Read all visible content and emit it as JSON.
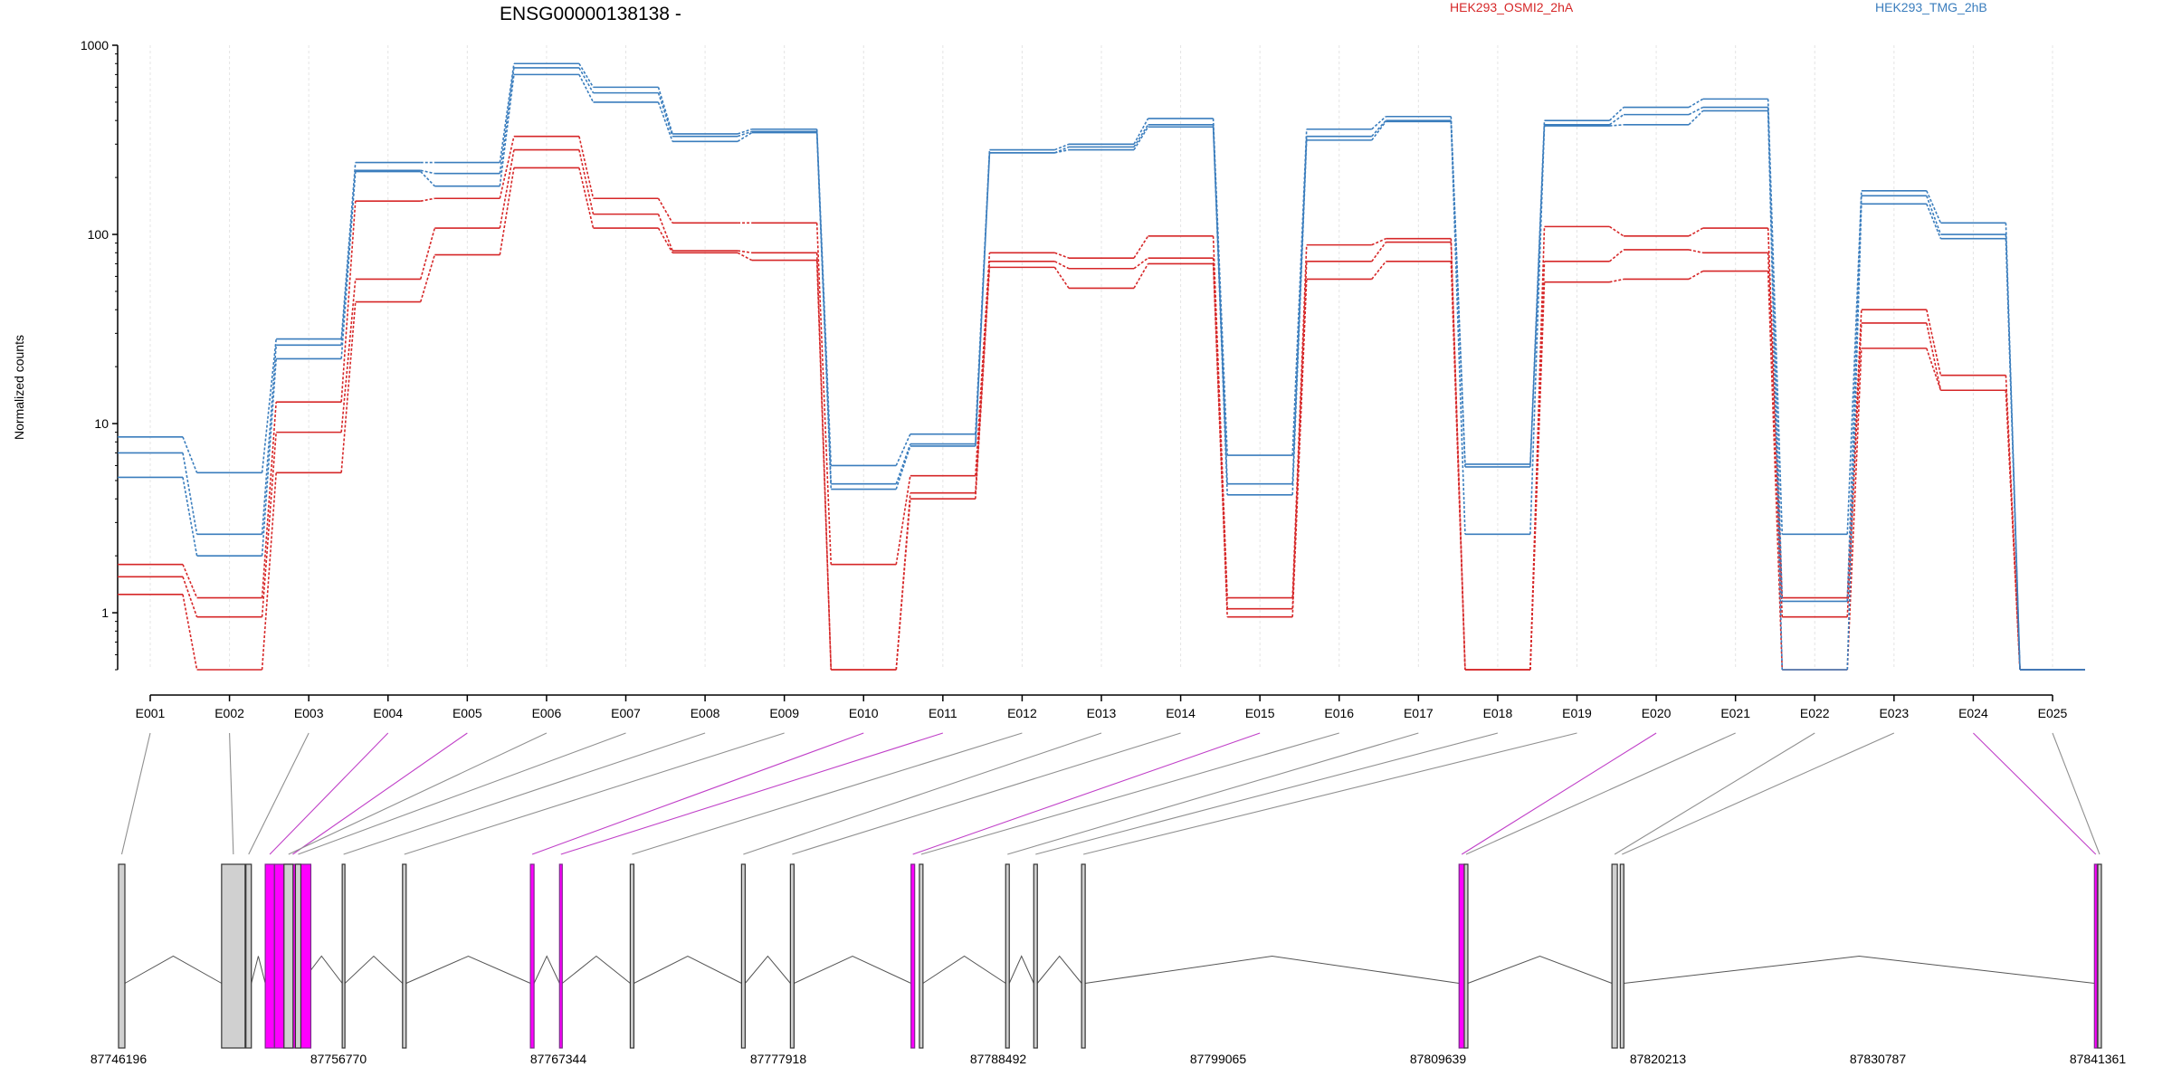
{
  "chart_data": {
    "type": "line",
    "title": "ENSG00000138138 -",
    "ylabel": "Normalized counts",
    "yscale": "log",
    "ylim": [
      0.5,
      1000
    ],
    "yticks": [
      1,
      10,
      100,
      1000
    ],
    "ytick_labels": [
      "1",
      "10",
      "100",
      "1000"
    ],
    "categories": [
      "E001",
      "E002",
      "E003",
      "E004",
      "E005",
      "E006",
      "E007",
      "E008",
      "E009",
      "E010",
      "E011",
      "E012",
      "E013",
      "E014",
      "E015",
      "E016",
      "E017",
      "E018",
      "E019",
      "E020",
      "E021",
      "E022",
      "E023",
      "E024",
      "E025"
    ],
    "legend": [
      {
        "label": "HEK293_OSMI2_2hA",
        "color": "#d62728"
      },
      {
        "label": "HEK293_TMG_2hB",
        "color": "#3a7dbd"
      }
    ],
    "series": [
      {
        "group": "HEK293_OSMI2_2hA",
        "color": "#d62728",
        "values": [
          1.8,
          1.2,
          13,
          150,
          155,
          330,
          155,
          115,
          115,
          1.8,
          5.3,
          80,
          75,
          98,
          1.2,
          88,
          95,
          0.5,
          110,
          98,
          108,
          1.2,
          40,
          18,
          0.5
        ]
      },
      {
        "group": "HEK293_OSMI2_2hA",
        "color": "#d62728",
        "values": [
          1.55,
          0.95,
          9,
          58,
          108,
          280,
          128,
          82,
          80,
          0.5,
          4.3,
          72,
          66,
          75,
          1.05,
          72,
          91,
          0.5,
          72,
          83,
          80,
          0.95,
          34,
          15,
          0.5
        ]
      },
      {
        "group": "HEK293_OSMI2_2hA",
        "color": "#d62728",
        "values": [
          1.25,
          0.5,
          5.5,
          44,
          78,
          225,
          108,
          80,
          73,
          0.5,
          4.0,
          67,
          52,
          70,
          0.95,
          58,
          72,
          0.5,
          56,
          58,
          64,
          0.5,
          25,
          15,
          0.5
        ]
      },
      {
        "group": "HEK293_TMG_2hB",
        "color": "#3a7dbd",
        "values": [
          8.5,
          5.5,
          28,
          240,
          240,
          800,
          600,
          340,
          360,
          6.0,
          8.8,
          280,
          300,
          410,
          6.8,
          360,
          420,
          6.1,
          400,
          470,
          520,
          2.6,
          170,
          115,
          0.5
        ]
      },
      {
        "group": "HEK293_TMG_2hB",
        "color": "#3a7dbd",
        "values": [
          7.0,
          2.6,
          26,
          218,
          210,
          760,
          560,
          330,
          350,
          4.8,
          7.8,
          270,
          290,
          380,
          4.8,
          330,
          400,
          5.9,
          380,
          430,
          470,
          1.15,
          160,
          100,
          0.5
        ]
      },
      {
        "group": "HEK293_TMG_2hB",
        "color": "#3a7dbd",
        "values": [
          5.2,
          2.0,
          22,
          215,
          180,
          700,
          500,
          310,
          345,
          4.5,
          7.6,
          270,
          280,
          370,
          4.2,
          315,
          395,
          2.6,
          375,
          380,
          450,
          0.5,
          145,
          95,
          0.5
        ]
      }
    ],
    "genomic_ticks": [
      "87746196",
      "87756770",
      "87767344",
      "87777918",
      "87788492",
      "87799065",
      "87809639",
      "87820213",
      "87830787",
      "87841361"
    ],
    "exon_highlight": [
      false,
      false,
      false,
      true,
      true,
      false,
      false,
      false,
      false,
      true,
      true,
      false,
      false,
      false,
      true,
      false,
      false,
      false,
      false,
      true,
      false,
      false,
      false,
      true,
      false
    ],
    "exon_highlight_color": "#c040c8",
    "exon_normal_color": "#909090"
  }
}
